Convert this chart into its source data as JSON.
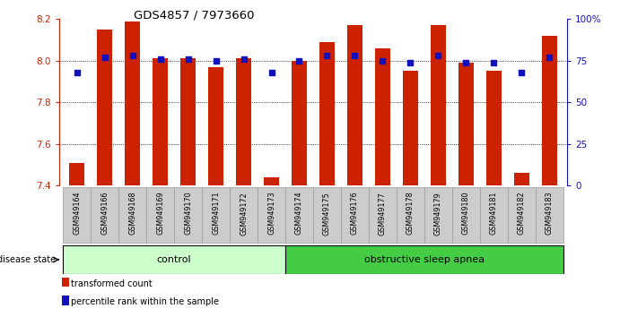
{
  "title": "GDS4857 / 7973660",
  "samples": [
    "GSM949164",
    "GSM949166",
    "GSM949168",
    "GSM949169",
    "GSM949170",
    "GSM949171",
    "GSM949172",
    "GSM949173",
    "GSM949174",
    "GSM949175",
    "GSM949176",
    "GSM949177",
    "GSM949178",
    "GSM949179",
    "GSM949180",
    "GSM949181",
    "GSM949182",
    "GSM949183"
  ],
  "bar_values": [
    7.51,
    8.15,
    8.19,
    8.01,
    8.01,
    7.97,
    8.01,
    7.44,
    8.0,
    8.09,
    8.17,
    8.06,
    7.95,
    8.17,
    7.99,
    7.95,
    7.46,
    8.12
  ],
  "percentile_values": [
    68,
    77,
    78,
    76,
    76,
    75,
    76,
    68,
    75,
    78,
    78,
    75,
    74,
    78,
    74,
    74,
    68,
    77
  ],
  "bar_color": "#cc2200",
  "dot_color": "#1111bb",
  "ylim_left": [
    7.4,
    8.2
  ],
  "ylim_right": [
    0,
    100
  ],
  "yticks_left": [
    7.4,
    7.6,
    7.8,
    8.0,
    8.2
  ],
  "ytick_labels_right": [
    "0",
    "25",
    "50",
    "75",
    "100%"
  ],
  "yticks_right": [
    0,
    25,
    50,
    75,
    100
  ],
  "grid_values": [
    7.6,
    7.8,
    8.0
  ],
  "control_count": 8,
  "total_count": 18,
  "control_color": "#ccffcc",
  "apnea_color": "#44cc44",
  "control_label": "control",
  "apnea_label": "obstructive sleep apnea",
  "disease_state_label": "disease state",
  "legend_items": [
    {
      "label": "transformed count",
      "color": "#cc2200"
    },
    {
      "label": "percentile rank within the sample",
      "color": "#1111bb"
    }
  ],
  "bar_width": 0.55,
  "sample_box_color": "#cccccc",
  "sample_box_edge": "#999999"
}
